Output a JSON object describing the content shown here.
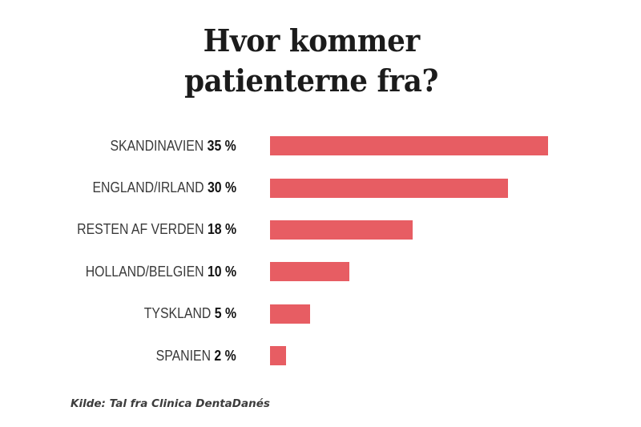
{
  "title": {
    "line1": "Hvor kommer",
    "line2": "patienterne fra?"
  },
  "chart_data": {
    "type": "bar",
    "orientation": "horizontal",
    "title": "Hvor kommer patienterne fra?",
    "categories": [
      "SKANDINAVIEN",
      "ENGLAND/IRLAND",
      "RESTEN AF VERDEN",
      "HOLLAND/BELGIEN",
      "TYSKLAND",
      "SPANIEN"
    ],
    "values": [
      35,
      30,
      18,
      10,
      5,
      2
    ],
    "value_labels": [
      "35 %",
      "30 %",
      "18 %",
      "10 %",
      "5 %",
      "2 %"
    ],
    "unit": "%",
    "xlim": [
      0,
      35
    ],
    "grid": false,
    "legend": "none",
    "bar_color": "#e75d63"
  },
  "footer": {
    "source": "Kilde: Tal fra Clinica DentaDanés"
  },
  "colors": {
    "background": "#ffffff",
    "bar": "#e75d63",
    "title_text": "#1b1b1b",
    "label_text": "#3a3a3a",
    "value_text": "#121212",
    "footer_text": "#3c3c3c"
  }
}
